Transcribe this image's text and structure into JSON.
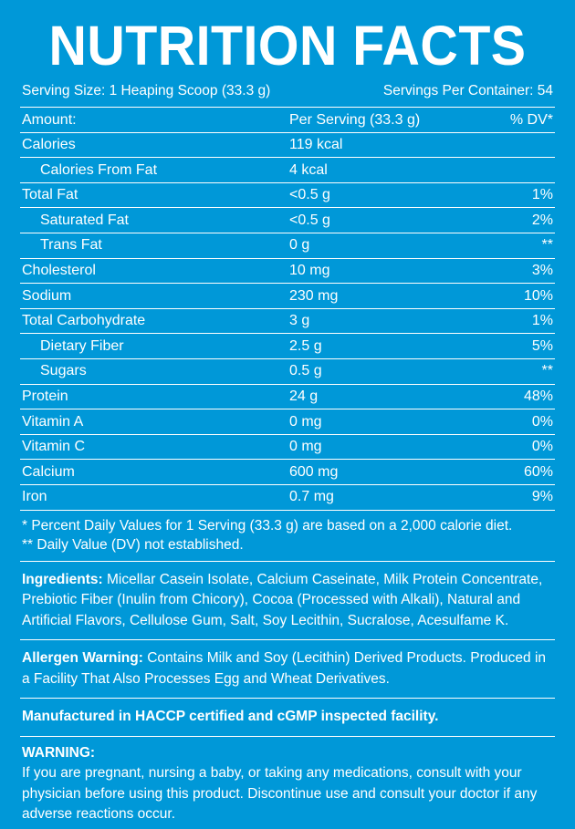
{
  "background_color": "#0098d8",
  "text_color": "#ffffff",
  "rule_color": "#ffffff",
  "title": "NUTRITION FACTS",
  "title_fontsize": 61,
  "title_weight": 900,
  "serving_size": "Serving Size: 1 Heaping Scoop (33.3 g)",
  "servings_per_container": "Servings Per Container: 54",
  "body_fontsize": 16,
  "header": {
    "c1": "Amount:",
    "c2": "Per Serving (33.3 g)",
    "c3": "% DV*"
  },
  "rows": [
    {
      "name": "Calories",
      "value": "119 kcal",
      "dv": "",
      "indent": false
    },
    {
      "name": "Calories From Fat",
      "value": "4 kcal",
      "dv": "",
      "indent": true
    },
    {
      "name": "Total Fat",
      "value": "<0.5 g",
      "dv": "1%",
      "indent": false
    },
    {
      "name": "Saturated Fat",
      "value": "<0.5 g",
      "dv": "2%",
      "indent": true
    },
    {
      "name": "Trans Fat",
      "value": "0 g",
      "dv": "**",
      "indent": true
    },
    {
      "name": "Cholesterol",
      "value": "10 mg",
      "dv": "3%",
      "indent": false
    },
    {
      "name": "Sodium",
      "value": "230 mg",
      "dv": "10%",
      "indent": false
    },
    {
      "name": "Total Carbohydrate",
      "value": "3 g",
      "dv": "1%",
      "indent": false
    },
    {
      "name": "Dietary Fiber",
      "value": "2.5 g",
      "dv": "5%",
      "indent": true
    },
    {
      "name": "Sugars",
      "value": "0.5 g",
      "dv": "**",
      "indent": true
    },
    {
      "name": "Protein",
      "value": "24 g",
      "dv": "48%",
      "indent": false
    },
    {
      "name": "Vitamin A",
      "value": "0 mg",
      "dv": "0%",
      "indent": false
    },
    {
      "name": "Vitamin C",
      "value": "0 mg",
      "dv": "0%",
      "indent": false
    },
    {
      "name": "Calcium",
      "value": "600 mg",
      "dv": "60%",
      "indent": false
    },
    {
      "name": "Iron",
      "value": "0.7 mg",
      "dv": "9%",
      "indent": false
    }
  ],
  "note1": "* Percent Daily Values for 1 Serving (33.3 g) are based on a 2,000 calorie diet.",
  "note2": "** Daily Value (DV) not established.",
  "ingredients_label": "Ingredients:",
  "ingredients_text": " Micellar Casein Isolate, Calcium Caseinate, Milk Protein Concentrate, Prebiotic Fiber (Inulin from Chicory), Cocoa (Processed with Alkali), Natural and Artificial Flavors, Cellulose Gum, Salt, Soy Lecithin, Sucralose, Acesulfame K.",
  "allergen_label": "Allergen Warning:",
  "allergen_text": " Contains Milk and Soy (Lecithin) Derived Products. Produced in a Facility That Also Processes Egg and Wheat Derivatives.",
  "manufactured": "Manufactured in HACCP certified and cGMP inspected facility.",
  "warning_label": "WARNING:",
  "warning_text": "If you are pregnant, nursing a baby, or taking any medications, consult with your physician before using this product. Discontinue use and consult your doctor if any adverse reactions occur."
}
